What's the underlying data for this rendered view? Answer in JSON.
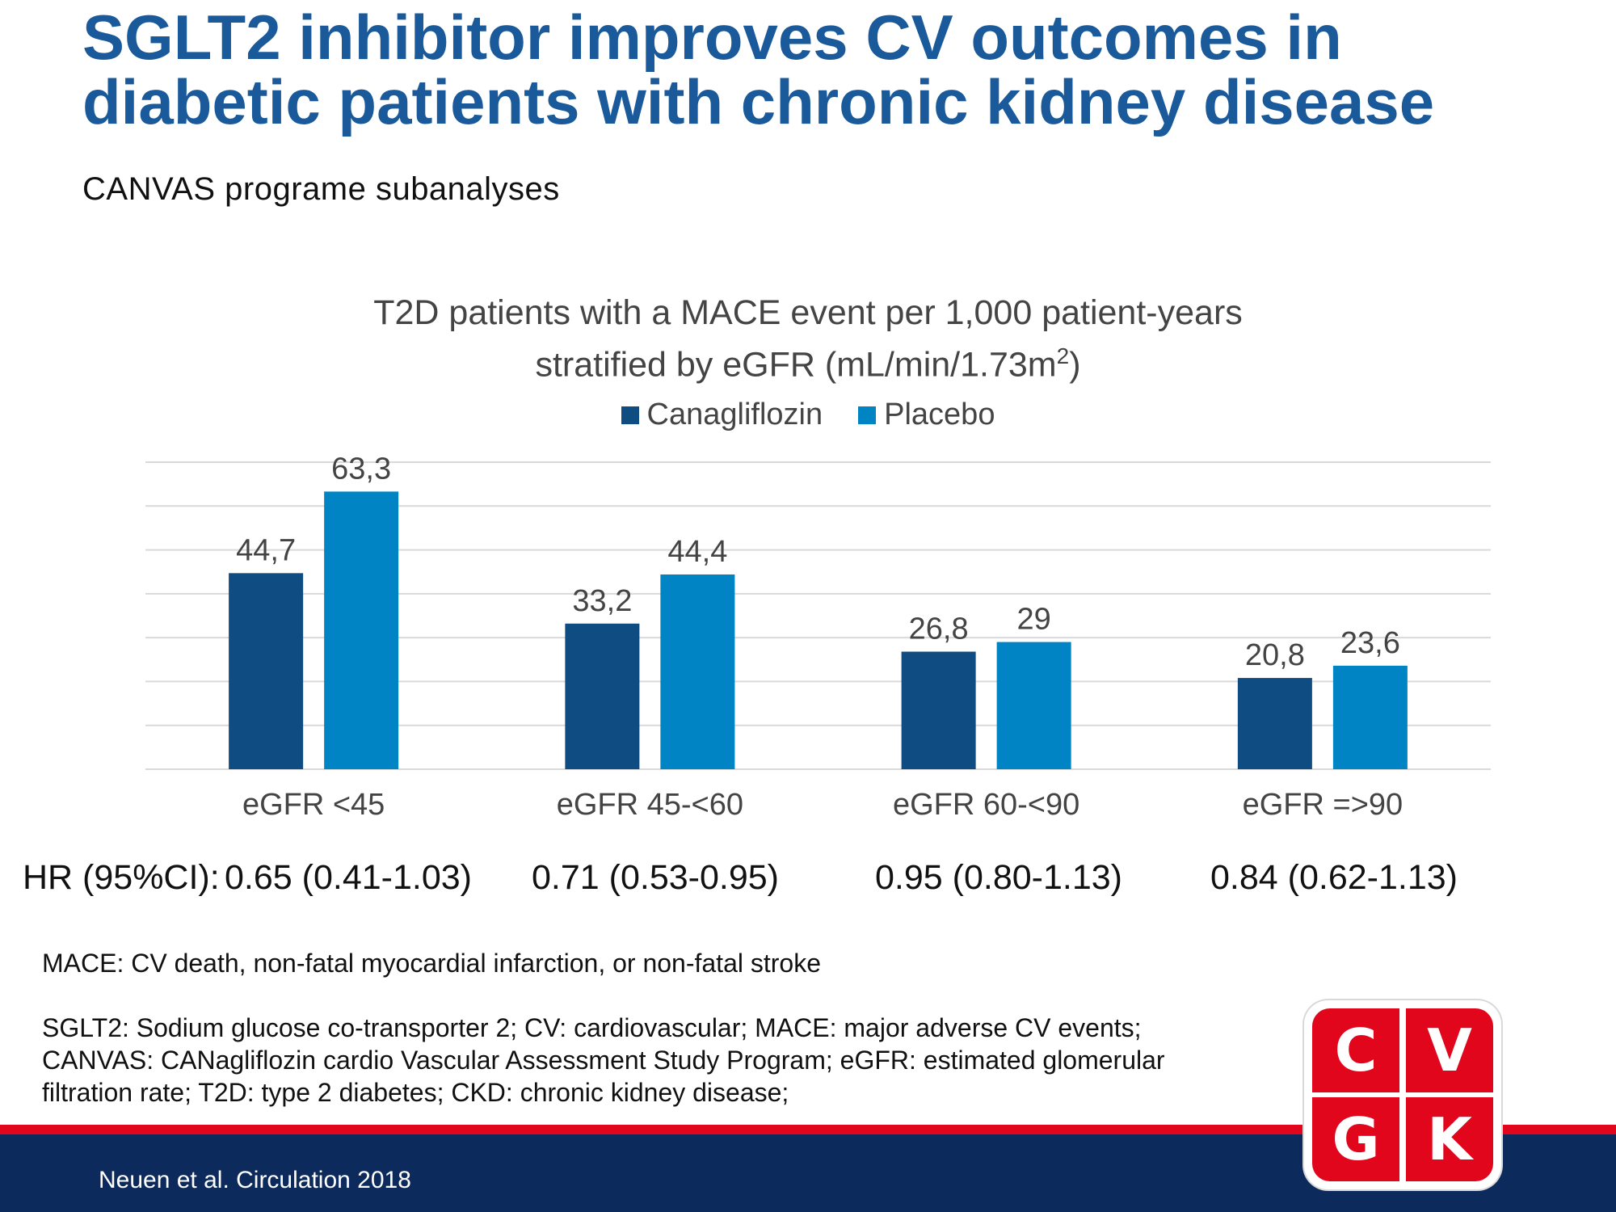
{
  "slide": {
    "title_line1": "SGLT2 inhibitor improves CV outcomes in",
    "title_line2": "diabetic patients with chronic kidney disease",
    "subtitle": "CANVAS programe subanalyses"
  },
  "chart_data": {
    "type": "bar",
    "title_line1": "T2D patients with a MACE event per 1,000 patient-years",
    "title_line2_prefix": "stratified by eGFR (mL/min/1.73m",
    "title_line2_sup": "2",
    "title_line2_suffix": ")",
    "categories": [
      "eGFR <45",
      "eGFR 45-<60",
      "eGFR 60-<90",
      "eGFR =>90"
    ],
    "series": [
      {
        "name": "Canagliflozin",
        "values": [
          44.7,
          33.2,
          26.8,
          20.8
        ],
        "labels": [
          "44,7",
          "33,2",
          "26,8",
          "20,8"
        ],
        "color": "#0f4c81"
      },
      {
        "name": "Placebo",
        "values": [
          63.3,
          44.4,
          29,
          23.6
        ],
        "labels": [
          "63,3",
          "44,4",
          "29",
          "23,6"
        ],
        "color": "#0084c4"
      }
    ],
    "ylim": [
      0,
      70
    ],
    "grid": true,
    "legend_position": "top-center",
    "gridline_color": "#d9d9d9",
    "label_color": "#444444"
  },
  "hazard_ratios": {
    "prefix": "HR (95%CI):",
    "values": [
      "0.65 (0.41-1.03)",
      "0.71 (0.53-0.95)",
      "0.95 (0.80-1.13)",
      "0.84 (0.62-1.13)"
    ]
  },
  "footnotes": {
    "mace": "MACE: CV death, non-fatal myocardial infarction, or non-fatal stroke",
    "abbrev_line1": "SGLT2: Sodium glucose co-transporter 2; CV: cardiovascular; MACE: major adverse CV events;",
    "abbrev_line2": "CANVAS: CANagliflozin cardio Vascular Assessment Study Program; eGFR: estimated glomerular",
    "abbrev_line3": "filtration rate; T2D: type 2 diabetes; CKD: chronic kidney disease;"
  },
  "footer": {
    "citation": "Neuen et al. Circulation 2018",
    "logo_letters": [
      "C",
      "V",
      "G",
      "K"
    ]
  },
  "colors": {
    "title": "#1a5a9a",
    "brand_red": "#e1061b",
    "footer_navy": "#0d2a5c"
  }
}
